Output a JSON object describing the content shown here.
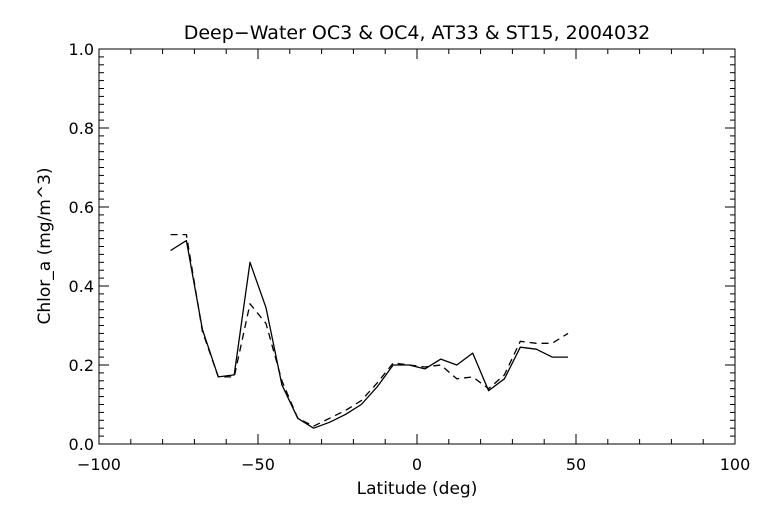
{
  "chart_data": {
    "type": "line",
    "title": "Deep−Water OC3 & OC4, AT33 & ST15, 2004032",
    "xlabel": "Latitude (deg)",
    "ylabel": "Chlor_a (mg/m^3)",
    "xlim": [
      -100,
      100
    ],
    "ylim": [
      0,
      1
    ],
    "xticks": [
      -100,
      -50,
      0,
      50,
      100
    ],
    "xtick_labels": [
      "−100",
      "−50",
      "0",
      "50",
      "100"
    ],
    "yticks": [
      0,
      0.2,
      0.4,
      0.6,
      0.8,
      1.0
    ],
    "ytick_labels": [
      "0.0",
      "0.2",
      "0.4",
      "0.6",
      "0.8",
      "1.0"
    ],
    "grid": false,
    "series": [
      {
        "style": "solid",
        "color": "#000000",
        "x": [
          -77.5,
          -72.5,
          -67.5,
          -62.5,
          -57.5,
          -52.5,
          -47.5,
          -42.5,
          -37.5,
          -32.5,
          -27.5,
          -22.5,
          -17.5,
          -12.5,
          -7.5,
          -2.5,
          2.5,
          7.5,
          12.5,
          17.5,
          22.5,
          27.5,
          32.5,
          37.5,
          42.5,
          47.5
        ],
        "values": [
          0.49,
          0.515,
          0.29,
          0.17,
          0.175,
          0.46,
          0.345,
          0.15,
          0.065,
          0.04,
          0.055,
          0.075,
          0.1,
          0.145,
          0.2,
          0.2,
          0.19,
          0.215,
          0.2,
          0.23,
          0.135,
          0.165,
          0.245,
          0.24,
          0.22,
          0.22
        ]
      },
      {
        "style": "dashed",
        "color": "#000000",
        "x": [
          -77.5,
          -72.5,
          -67.5,
          -62.5,
          -57.5,
          -52.5,
          -47.5,
          -42.5,
          -37.5,
          -32.5,
          -27.5,
          -22.5,
          -17.5,
          -12.5,
          -7.5,
          -2.5,
          2.5,
          7.5,
          12.5,
          17.5,
          22.5,
          27.5,
          32.5,
          37.5,
          42.5,
          47.5
        ],
        "values": [
          0.53,
          0.53,
          0.285,
          0.17,
          0.17,
          0.355,
          0.305,
          0.16,
          0.065,
          0.045,
          0.065,
          0.085,
          0.11,
          0.155,
          0.205,
          0.2,
          0.195,
          0.2,
          0.165,
          0.17,
          0.14,
          0.175,
          0.26,
          0.255,
          0.255,
          0.28
        ]
      }
    ]
  }
}
